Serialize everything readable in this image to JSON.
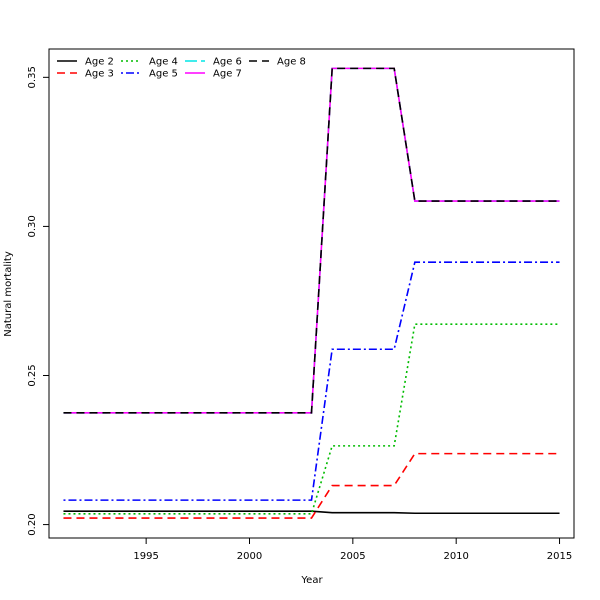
{
  "chart_data": {
    "type": "line",
    "xlabel": "Year",
    "ylabel": "Natural mortality",
    "xlim": [
      1990.3,
      2015.7
    ],
    "ylim": [
      0.1955,
      0.3595
    ],
    "xticks": [
      1995,
      2000,
      2005,
      2010,
      2015
    ],
    "yticks": [
      0.2,
      0.25,
      0.3,
      0.35
    ],
    "ytick_labels": [
      "0.20",
      "0.25",
      "0.30",
      "0.35"
    ],
    "grid": false,
    "legend_position": "top-left",
    "x": [
      1991,
      1992,
      1993,
      1994,
      1995,
      1996,
      1997,
      1998,
      1999,
      2000,
      2001,
      2002,
      2003,
      2004,
      2005,
      2006,
      2007,
      2008,
      2009,
      2010,
      2011,
      2012,
      2013,
      2014,
      2015
    ],
    "series": [
      {
        "name": "Age 2",
        "color": "#000000",
        "dash": "solid",
        "values": [
          0.2045,
          0.2045,
          0.2045,
          0.2045,
          0.2045,
          0.2045,
          0.2045,
          0.2045,
          0.2045,
          0.2045,
          0.2045,
          0.2045,
          0.2045,
          0.204,
          0.204,
          0.204,
          0.204,
          0.2038,
          0.2038,
          0.2038,
          0.2038,
          0.2038,
          0.2038,
          0.2038,
          0.2038
        ]
      },
      {
        "name": "Age 3",
        "color": "#ff0000",
        "dash": "dashed",
        "values": [
          0.2022,
          0.2022,
          0.2022,
          0.2022,
          0.2022,
          0.2022,
          0.2022,
          0.2022,
          0.2022,
          0.2022,
          0.2022,
          0.2022,
          0.2022,
          0.2131,
          0.2131,
          0.2131,
          0.2131,
          0.2238,
          0.2238,
          0.2238,
          0.2238,
          0.2238,
          0.2238,
          0.2238,
          0.2238
        ]
      },
      {
        "name": "Age 4",
        "color": "#00bb00",
        "dash": "dotted",
        "values": [
          0.2036,
          0.2036,
          0.2036,
          0.2036,
          0.2036,
          0.2036,
          0.2036,
          0.2036,
          0.2036,
          0.2036,
          0.2036,
          0.2036,
          0.2036,
          0.2264,
          0.2264,
          0.2264,
          0.2264,
          0.2672,
          0.2672,
          0.2672,
          0.2672,
          0.2672,
          0.2672,
          0.2672,
          0.2672
        ]
      },
      {
        "name": "Age 5",
        "color": "#0000ff",
        "dash": "dotdash",
        "values": [
          0.2082,
          0.2082,
          0.2082,
          0.2082,
          0.2082,
          0.2082,
          0.2082,
          0.2082,
          0.2082,
          0.2082,
          0.2082,
          0.2082,
          0.2082,
          0.2588,
          0.2588,
          0.2588,
          0.2588,
          0.288,
          0.288,
          0.288,
          0.288,
          0.288,
          0.288,
          0.288,
          0.288
        ]
      },
      {
        "name": "Age 6",
        "color": "#00e5e5",
        "dash": "longdash",
        "values": [
          0.2375,
          0.2375,
          0.2375,
          0.2375,
          0.2375,
          0.2375,
          0.2375,
          0.2375,
          0.2375,
          0.2375,
          0.2375,
          0.2375,
          0.2375,
          0.353,
          0.353,
          0.353,
          0.353,
          0.3085,
          0.3085,
          0.3085,
          0.3085,
          0.3085,
          0.3085,
          0.3085,
          0.3085
        ]
      },
      {
        "name": "Age 7",
        "color": "#ff00ff",
        "dash": "solid",
        "values": [
          0.2375,
          0.2375,
          0.2375,
          0.2375,
          0.2375,
          0.2375,
          0.2375,
          0.2375,
          0.2375,
          0.2375,
          0.2375,
          0.2375,
          0.2375,
          0.353,
          0.353,
          0.353,
          0.353,
          0.3085,
          0.3085,
          0.3085,
          0.3085,
          0.3085,
          0.3085,
          0.3085,
          0.3085
        ]
      },
      {
        "name": "Age 8",
        "color": "#000000",
        "dash": "dashed",
        "values": [
          0.2375,
          0.2375,
          0.2375,
          0.2375,
          0.2375,
          0.2375,
          0.2375,
          0.2375,
          0.2375,
          0.2375,
          0.2375,
          0.2375,
          0.2375,
          0.353,
          0.353,
          0.353,
          0.353,
          0.3085,
          0.3085,
          0.3085,
          0.3085,
          0.3085,
          0.3085,
          0.3085,
          0.3085
        ]
      }
    ]
  }
}
